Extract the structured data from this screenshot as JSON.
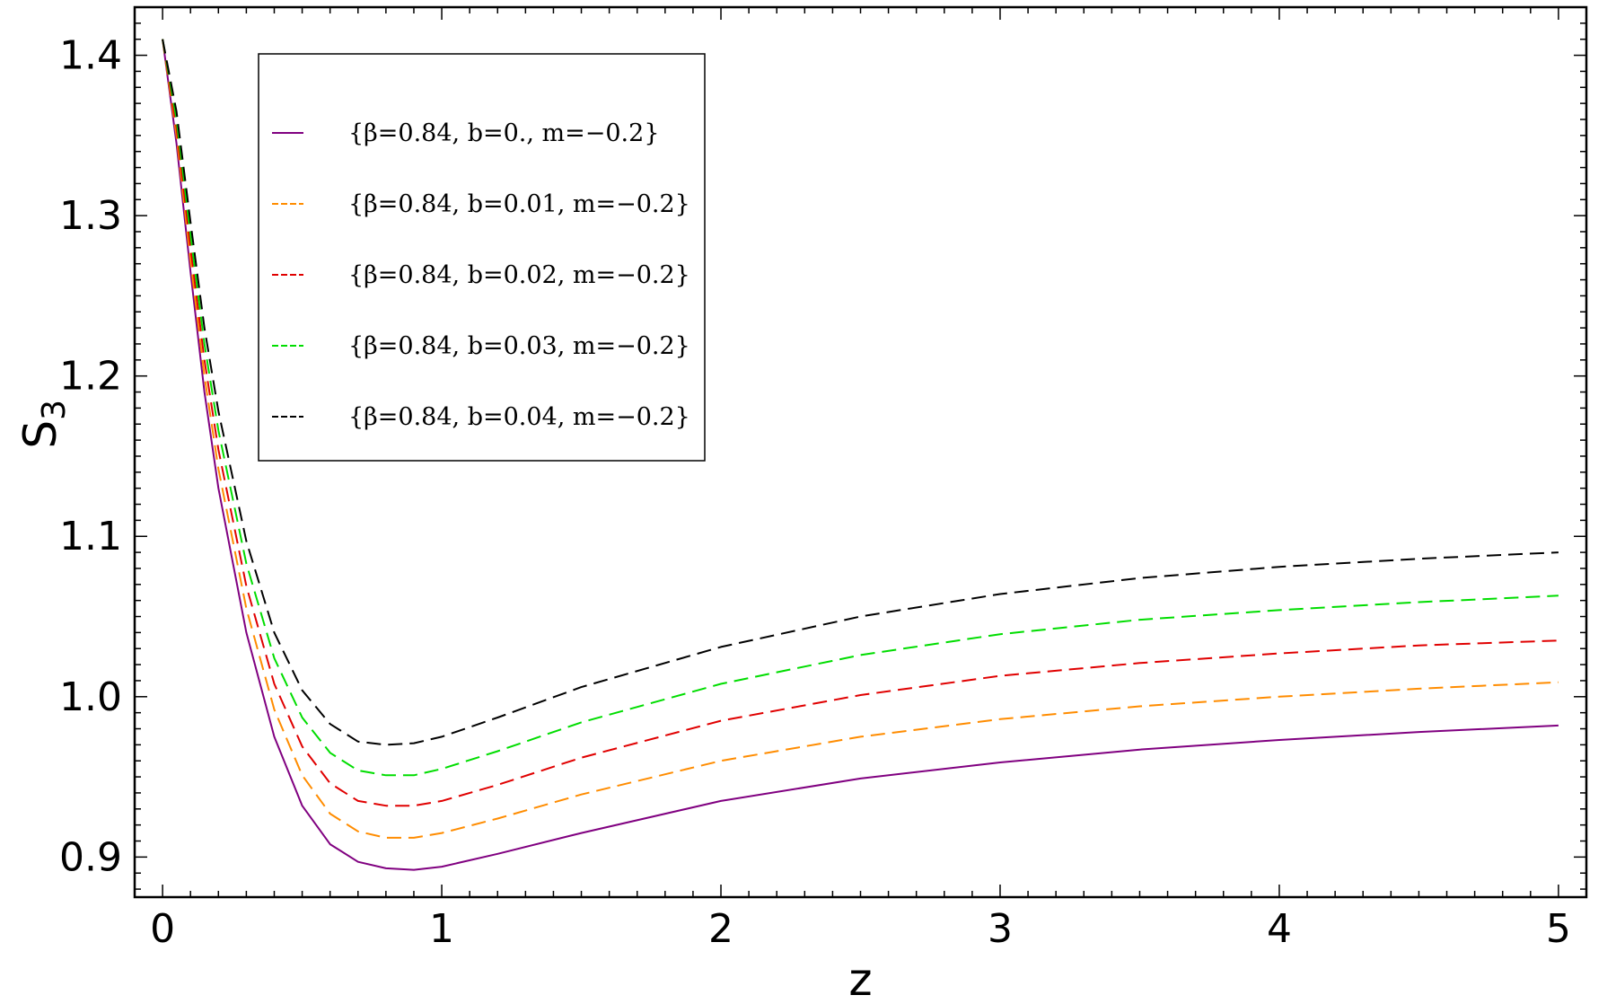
{
  "chart_data": {
    "type": "line",
    "xlabel": "z",
    "ylabel": "S",
    "ylabel_sub": "3",
    "xlim": [
      -0.1,
      5.1
    ],
    "ylim": [
      0.875,
      1.43
    ],
    "x_ticks": [
      0,
      1,
      2,
      3,
      4,
      5
    ],
    "x_tick_labels": [
      "0",
      "1",
      "2",
      "3",
      "4",
      "5"
    ],
    "y_ticks": [
      0.9,
      1.0,
      1.1,
      1.2,
      1.3,
      1.4
    ],
    "y_tick_labels": [
      "0.9",
      "1.0",
      "1.1",
      "1.2",
      "1.3",
      "1.4"
    ],
    "grid": false,
    "legend_position": "top-left",
    "x": [
      0,
      0.05,
      0.1,
      0.15,
      0.2,
      0.3,
      0.4,
      0.5,
      0.6,
      0.7,
      0.8,
      0.9,
      1.0,
      1.2,
      1.5,
      2.0,
      2.5,
      3.0,
      3.5,
      4.0,
      4.5,
      5.0
    ],
    "series": [
      {
        "name": "{β=0.84, b=0., m=−0.2}",
        "color": "#800080",
        "dashed": false,
        "values": [
          1.41,
          1.345,
          1.265,
          1.19,
          1.13,
          1.04,
          0.975,
          0.932,
          0.908,
          0.897,
          0.893,
          0.892,
          0.894,
          0.902,
          0.915,
          0.935,
          0.949,
          0.959,
          0.967,
          0.973,
          0.978,
          0.982
        ]
      },
      {
        "name": "{β=0.84, b=0.01, m=−0.2}",
        "color": "#ff8c00",
        "dashed": true,
        "values": [
          1.41,
          1.35,
          1.272,
          1.2,
          1.142,
          1.055,
          0.992,
          0.951,
          0.927,
          0.916,
          0.912,
          0.912,
          0.915,
          0.924,
          0.939,
          0.96,
          0.975,
          0.986,
          0.994,
          1.0,
          1.005,
          1.009
        ]
      },
      {
        "name": "{β=0.84, b=0.02, m=−0.2}",
        "color": "#e00000",
        "dashed": true,
        "values": [
          1.41,
          1.355,
          1.28,
          1.21,
          1.154,
          1.069,
          1.008,
          0.969,
          0.946,
          0.935,
          0.932,
          0.932,
          0.935,
          0.945,
          0.962,
          0.985,
          1.001,
          1.013,
          1.021,
          1.027,
          1.032,
          1.035
        ]
      },
      {
        "name": "{β=0.84, b=0.03, m=−0.2}",
        "color": "#00dd00",
        "dashed": true,
        "values": [
          1.41,
          1.36,
          1.288,
          1.22,
          1.166,
          1.083,
          1.024,
          0.987,
          0.965,
          0.954,
          0.951,
          0.951,
          0.955,
          0.966,
          0.984,
          1.008,
          1.026,
          1.039,
          1.048,
          1.054,
          1.059,
          1.063
        ]
      },
      {
        "name": "{β=0.84, b=0.04, m=−0.2}",
        "color": "#000000",
        "dashed": true,
        "values": [
          1.41,
          1.365,
          1.296,
          1.23,
          1.178,
          1.097,
          1.04,
          1.004,
          0.983,
          0.972,
          0.97,
          0.971,
          0.975,
          0.987,
          1.006,
          1.031,
          1.05,
          1.064,
          1.074,
          1.081,
          1.086,
          1.09
        ]
      }
    ]
  }
}
